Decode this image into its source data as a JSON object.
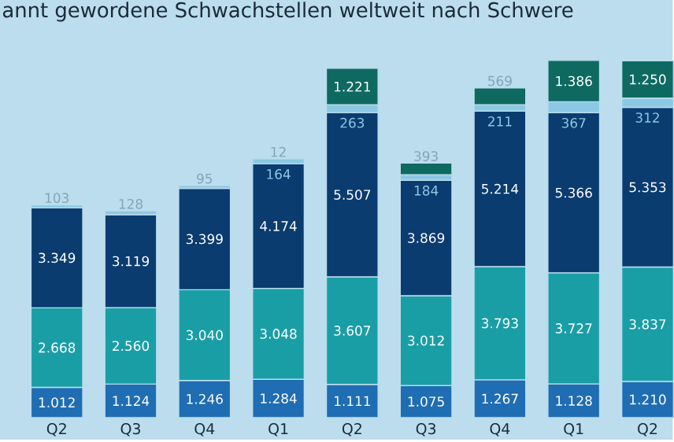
{
  "chart_data": {
    "type": "bar",
    "stacked": true,
    "title": "annt gewordene Schwachstellen weltweit nach Schwere",
    "categories": [
      "Q2",
      "Q3",
      "Q4",
      "Q1",
      "Q2",
      "Q3",
      "Q4",
      "Q1",
      "Q2"
    ],
    "ylim": [
      0,
      14000
    ],
    "tick_labels": "x",
    "series": [
      {
        "color": "#1f6db3",
        "values": [
          1012,
          1124,
          1246,
          1284,
          1111,
          1075,
          1267,
          1128,
          1210
        ],
        "value_labels": [
          "1.012",
          "1.124",
          "1.246",
          "1.284",
          "1.111",
          "1.075",
          "1.267",
          "1.128",
          "1.210"
        ]
      },
      {
        "color": "#1a9ea6",
        "values": [
          2668,
          2560,
          3040,
          3048,
          3607,
          3012,
          3793,
          3727,
          3837
        ],
        "value_labels": [
          "2.668",
          "2.560",
          "3.040",
          "3.048",
          "3.607",
          "3.012",
          "3.793",
          "3.727",
          "3.837"
        ]
      },
      {
        "color": "#0b3c70",
        "values": [
          3349,
          3119,
          3399,
          4174,
          5507,
          3869,
          5214,
          5366,
          5353
        ],
        "value_labels": [
          "3.349",
          "3.119",
          "3.399",
          "4.174",
          "5.507",
          "3.869",
          "5.214",
          "5.366",
          "5.353"
        ]
      },
      {
        "color": "#8cc8e3",
        "values": [
          103,
          128,
          95,
          164,
          263,
          184,
          211,
          367,
          312
        ],
        "value_labels": [
          "103",
          "128",
          "95",
          "164",
          "263",
          "184",
          "211",
          "367",
          "312"
        ]
      },
      {
        "color": "#0e6a60",
        "values": [
          null,
          null,
          null,
          12,
          1221,
          393,
          569,
          1386,
          1250
        ],
        "value_labels": [
          null,
          null,
          null,
          "12",
          "1.221",
          "393",
          "569",
          "1.386",
          "1.250"
        ]
      }
    ]
  }
}
